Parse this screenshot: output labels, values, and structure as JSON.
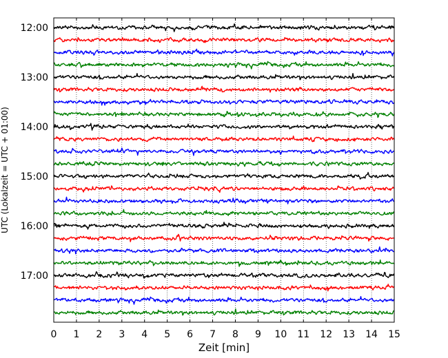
{
  "chart_data": {
    "type": "line",
    "title": "",
    "xlabel": "Zeit  [min]",
    "ylabel": "UTC (Lokalzeit = UTC + 01:00)",
    "xlim": [
      0,
      15
    ],
    "x_ticks": [
      0,
      1,
      2,
      3,
      4,
      5,
      6,
      7,
      8,
      9,
      10,
      11,
      12,
      13,
      14,
      15
    ],
    "y_tick_labels": [
      "12:00",
      "13:00",
      "14:00",
      "15:00",
      "16:00",
      "17:00"
    ],
    "grid": "vertical dotted",
    "legend": "none",
    "trace_colors": [
      "#000000",
      "#ff0000",
      "#0000ff",
      "#008000"
    ],
    "traces": [
      {
        "start": "12:00",
        "color": "#000000"
      },
      {
        "start": "12:15",
        "color": "#ff0000"
      },
      {
        "start": "12:30",
        "color": "#0000ff"
      },
      {
        "start": "12:45",
        "color": "#008000"
      },
      {
        "start": "13:00",
        "color": "#000000"
      },
      {
        "start": "13:15",
        "color": "#ff0000"
      },
      {
        "start": "13:30",
        "color": "#0000ff"
      },
      {
        "start": "13:45",
        "color": "#008000"
      },
      {
        "start": "14:00",
        "color": "#000000"
      },
      {
        "start": "14:15",
        "color": "#ff0000"
      },
      {
        "start": "14:30",
        "color": "#0000ff"
      },
      {
        "start": "14:45",
        "color": "#008000"
      },
      {
        "start": "15:00",
        "color": "#000000"
      },
      {
        "start": "15:15",
        "color": "#ff0000"
      },
      {
        "start": "15:30",
        "color": "#0000ff"
      },
      {
        "start": "15:45",
        "color": "#008000"
      },
      {
        "start": "16:00",
        "color": "#000000"
      },
      {
        "start": "16:15",
        "color": "#ff0000"
      },
      {
        "start": "16:30",
        "color": "#0000ff"
      },
      {
        "start": "16:45",
        "color": "#008000"
      },
      {
        "start": "17:00",
        "color": "#000000"
      },
      {
        "start": "17:15",
        "color": "#ff0000"
      },
      {
        "start": "17:30",
        "color": "#0000ff"
      },
      {
        "start": "17:45",
        "color": "#008000"
      }
    ]
  }
}
